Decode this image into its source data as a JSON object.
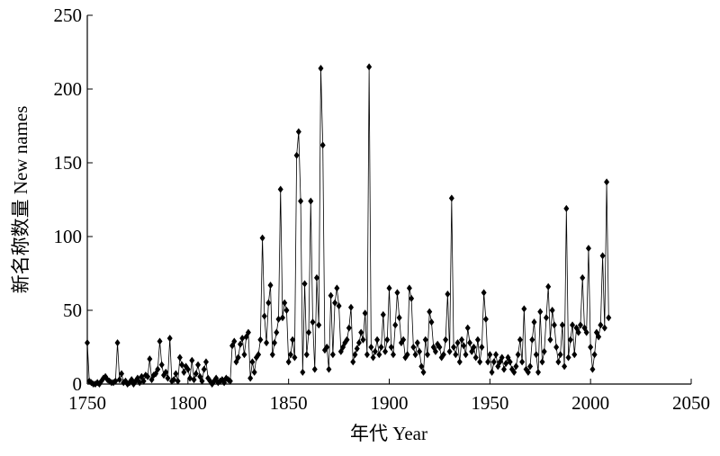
{
  "chart_data": {
    "type": "line",
    "x_label": "年代 Year",
    "y_label": "新名称数量 New names",
    "xlim": [
      1750,
      2050
    ],
    "xticks": [
      1750,
      1800,
      1850,
      1900,
      1950,
      2000,
      2050
    ],
    "ylim": [
      0,
      250
    ],
    "yticks": [
      0,
      50,
      100,
      150,
      200,
      250
    ],
    "color": "#000000",
    "x": [
      1750,
      1751,
      1752,
      1753,
      1754,
      1755,
      1756,
      1757,
      1758,
      1759,
      1760,
      1761,
      1762,
      1763,
      1764,
      1765,
      1766,
      1767,
      1768,
      1769,
      1770,
      1771,
      1772,
      1773,
      1774,
      1775,
      1776,
      1777,
      1778,
      1779,
      1780,
      1781,
      1782,
      1783,
      1784,
      1785,
      1786,
      1787,
      1788,
      1789,
      1790,
      1791,
      1792,
      1793,
      1794,
      1795,
      1796,
      1797,
      1798,
      1799,
      1800,
      1801,
      1802,
      1803,
      1804,
      1805,
      1806,
      1807,
      1808,
      1809,
      1810,
      1811,
      1812,
      1813,
      1814,
      1815,
      1816,
      1817,
      1818,
      1819,
      1820,
      1821,
      1822,
      1823,
      1824,
      1825,
      1826,
      1827,
      1828,
      1829,
      1830,
      1831,
      1832,
      1833,
      1834,
      1835,
      1836,
      1837,
      1838,
      1839,
      1840,
      1841,
      1842,
      1843,
      1844,
      1845,
      1846,
      1847,
      1848,
      1849,
      1850,
      1851,
      1852,
      1853,
      1854,
      1855,
      1856,
      1857,
      1858,
      1859,
      1860,
      1861,
      1862,
      1863,
      1864,
      1865,
      1866,
      1867,
      1868,
      1869,
      1870,
      1871,
      1872,
      1873,
      1874,
      1875,
      1876,
      1877,
      1878,
      1879,
      1880,
      1881,
      1882,
      1883,
      1884,
      1885,
      1886,
      1887,
      1888,
      1889,
      1890,
      1891,
      1892,
      1893,
      1894,
      1895,
      1896,
      1897,
      1898,
      1899,
      1900,
      1901,
      1902,
      1903,
      1904,
      1905,
      1906,
      1907,
      1908,
      1909,
      1910,
      1911,
      1912,
      1913,
      1914,
      1915,
      1916,
      1917,
      1918,
      1919,
      1920,
      1921,
      1922,
      1923,
      1924,
      1925,
      1926,
      1927,
      1928,
      1929,
      1930,
      1931,
      1932,
      1933,
      1934,
      1935,
      1936,
      1937,
      1938,
      1939,
      1940,
      1941,
      1942,
      1943,
      1944,
      1945,
      1946,
      1947,
      1948,
      1949,
      1950,
      1951,
      1952,
      1953,
      1954,
      1955,
      1956,
      1957,
      1958,
      1959,
      1960,
      1961,
      1962,
      1963,
      1964,
      1965,
      1966,
      1967,
      1968,
      1969,
      1970,
      1971,
      1972,
      1973,
      1974,
      1975,
      1976,
      1977,
      1978,
      1979,
      1980,
      1981,
      1982,
      1983,
      1984,
      1985,
      1986,
      1987,
      1988,
      1989,
      1990,
      1991,
      1992,
      1993,
      1994,
      1995,
      1996,
      1997,
      1998,
      1999,
      2000,
      2001,
      2002,
      2003,
      2004,
      2005,
      2006,
      2007,
      2008,
      2009
    ],
    "values": [
      28,
      2,
      1,
      0,
      0,
      1,
      0,
      2,
      4,
      5,
      3,
      2,
      1,
      1,
      2,
      28,
      3,
      7,
      1,
      2,
      0,
      1,
      3,
      0,
      2,
      4,
      1,
      5,
      2,
      6,
      5,
      17,
      3,
      6,
      7,
      10,
      29,
      13,
      6,
      8,
      4,
      31,
      2,
      3,
      7,
      2,
      18,
      13,
      8,
      12,
      10,
      4,
      16,
      3,
      7,
      13,
      5,
      2,
      10,
      15,
      4,
      2,
      0,
      2,
      4,
      1,
      2,
      3,
      1,
      4,
      3,
      2,
      26,
      29,
      15,
      18,
      27,
      31,
      20,
      32,
      35,
      4,
      15,
      8,
      18,
      20,
      30,
      99,
      46,
      28,
      55,
      67,
      20,
      28,
      35,
      44,
      132,
      45,
      55,
      50,
      15,
      20,
      30,
      18,
      155,
      171,
      124,
      8,
      68,
      20,
      35,
      124,
      42,
      10,
      72,
      40,
      214,
      162,
      23,
      25,
      10,
      60,
      20,
      55,
      65,
      53,
      22,
      25,
      28,
      30,
      38,
      52,
      15,
      20,
      24,
      28,
      35,
      30,
      48,
      20,
      215,
      25,
      18,
      22,
      30,
      20,
      25,
      47,
      22,
      30,
      65,
      25,
      20,
      40,
      62,
      45,
      28,
      30,
      18,
      20,
      65,
      58,
      25,
      20,
      28,
      22,
      12,
      8,
      30,
      20,
      49,
      42,
      25,
      22,
      27,
      25,
      18,
      20,
      30,
      61,
      22,
      126,
      25,
      20,
      28,
      15,
      30,
      26,
      20,
      38,
      28,
      22,
      25,
      18,
      30,
      15,
      25,
      62,
      44,
      15,
      20,
      8,
      15,
      20,
      12,
      15,
      18,
      10,
      14,
      18,
      15,
      10,
      8,
      12,
      20,
      30,
      15,
      51,
      10,
      8,
      12,
      30,
      42,
      20,
      8,
      49,
      15,
      22,
      45,
      66,
      30,
      50,
      40,
      25,
      15,
      20,
      40,
      12,
      119,
      18,
      30,
      40,
      20,
      38,
      35,
      40,
      72,
      38,
      35,
      92,
      25,
      10,
      20,
      35,
      32,
      40,
      87,
      38,
      137,
      45
    ]
  }
}
